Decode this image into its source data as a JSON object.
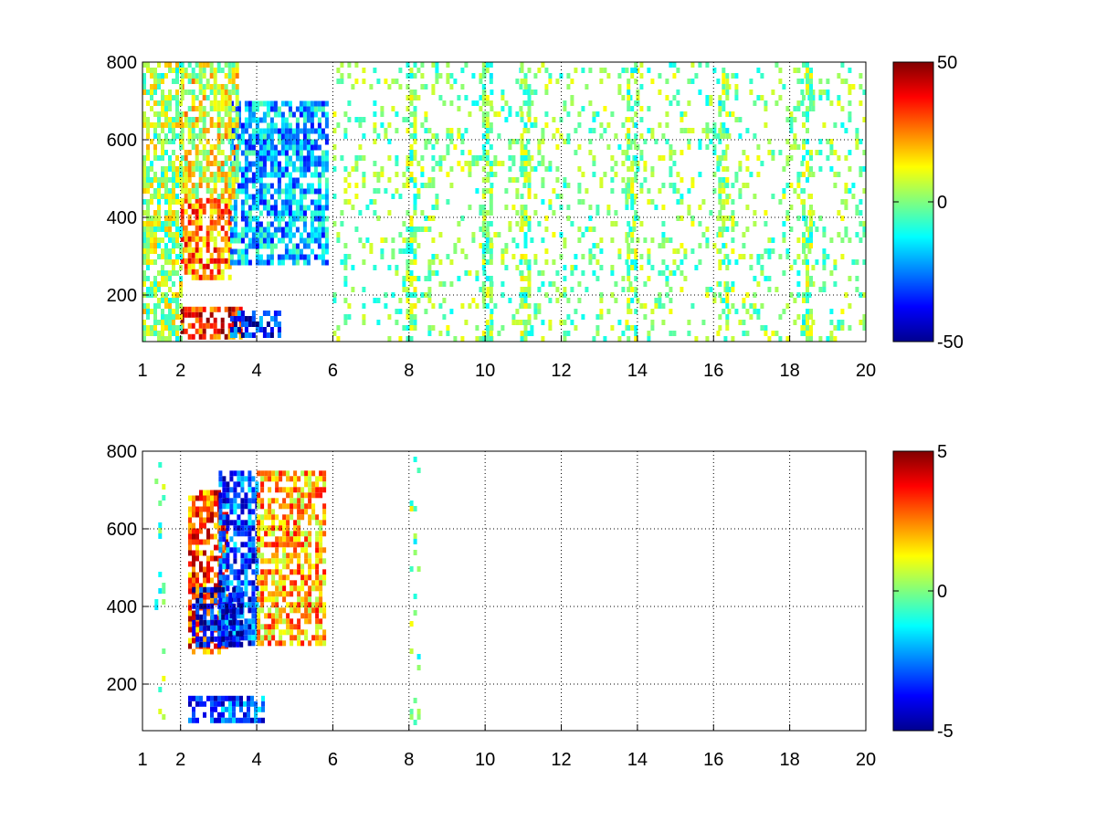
{
  "chart_data": [
    {
      "type": "heatmap",
      "title": "",
      "xlabel": "",
      "ylabel": "",
      "xlim": [
        1,
        20
      ],
      "ylim": [
        80,
        800
      ],
      "xticks": [
        1,
        2,
        4,
        6,
        8,
        10,
        12,
        14,
        16,
        18,
        20
      ],
      "yticks": [
        200,
        400,
        600,
        800
      ],
      "grid": true,
      "colormap": "jet",
      "clim": [
        -50,
        50
      ],
      "colorbar_ticks": [
        50,
        0,
        -50
      ],
      "regions": [
        {
          "x": [
            2.0,
            3.6
          ],
          "y": [
            90,
            170
          ],
          "value": 35
        },
        {
          "x": [
            3.3,
            4.6
          ],
          "y": [
            90,
            160
          ],
          "value": -35
        },
        {
          "x": [
            2.0,
            3.3
          ],
          "y": [
            250,
            450
          ],
          "value": 25
        },
        {
          "x": [
            3.3,
            5.8
          ],
          "y": [
            280,
            700
          ],
          "value": -20
        },
        {
          "x": [
            2.0,
            3.5
          ],
          "y": [
            450,
            800
          ],
          "value": 10
        },
        {
          "x": [
            1.0,
            2.0
          ],
          "y": [
            80,
            800
          ],
          "value": 3
        },
        {
          "x": [
            6.0,
            20.0
          ],
          "y": [
            80,
            800
          ],
          "value": 0,
          "sparse": true
        }
      ],
      "stripes_x": [
        8.0,
        10.0,
        11.0,
        13.8,
        16.2,
        18.4
      ]
    },
    {
      "type": "heatmap",
      "title": "",
      "xlabel": "",
      "ylabel": "",
      "xlim": [
        1,
        20
      ],
      "ylim": [
        80,
        800
      ],
      "xticks": [
        1,
        2,
        4,
        6,
        8,
        10,
        12,
        14,
        16,
        18,
        20
      ],
      "yticks": [
        200,
        400,
        600,
        800
      ],
      "grid": true,
      "colormap": "jet",
      "clim": [
        -5,
        5
      ],
      "colorbar_ticks": [
        5,
        0,
        -5
      ],
      "regions": [
        {
          "x": [
            2.2,
            4.2
          ],
          "y": [
            100,
            170
          ],
          "value": -3
        },
        {
          "x": [
            2.2,
            3.2
          ],
          "y": [
            280,
            700
          ],
          "value": 3
        },
        {
          "x": [
            3.0,
            4.0
          ],
          "y": [
            300,
            750
          ],
          "value": -3
        },
        {
          "x": [
            4.0,
            5.8
          ],
          "y": [
            300,
            750
          ],
          "value": 2
        },
        {
          "x": [
            2.3,
            3.6
          ],
          "y": [
            300,
            450
          ],
          "value": -4
        }
      ],
      "stripes_x": [
        1.4,
        8.1
      ]
    }
  ]
}
